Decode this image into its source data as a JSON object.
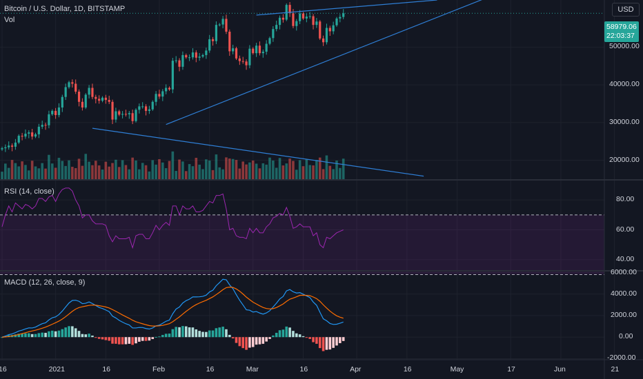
{
  "header": {
    "symbol_title": "Bitcoin / U.S. Dollar, 1D, BITSTAMP",
    "vol_label": "Vol",
    "currency_button": "USD"
  },
  "last_price": {
    "value": "58979.06",
    "countdown": "22:03:37"
  },
  "panes": {
    "rsi_title": "RSI (14, close)",
    "macd_title": "MACD (12, 26, close, 9)"
  },
  "colors": {
    "background": "#131722",
    "up": "#26a69a",
    "down": "#ef5350",
    "trendline": "#2962ff",
    "rsi": "#9c27b0",
    "macd_line": "#2196f3",
    "signal_line": "#ff6d00"
  },
  "chart_data": [
    {
      "type": "candlestick",
      "title": "Bitcoin / U.S. Dollar, 1D, BITSTAMP",
      "price_axis_ticks": [
        "20000.00",
        "30000.00",
        "40000.00",
        "50000.00"
      ],
      "ylim": [
        15000,
        62500
      ],
      "x_ticks": [
        "16",
        "2021",
        "16",
        "Feb",
        "16",
        "Mar",
        "16",
        "Apr",
        "16",
        "May",
        "17",
        "Jun",
        "21"
      ],
      "x_tick_days": [
        0,
        16,
        31,
        47,
        62,
        75,
        90,
        106,
        121,
        136,
        152,
        167,
        183
      ],
      "x_range_days": [
        0,
        200
      ],
      "close": [
        23200,
        23450,
        23900,
        23600,
        24700,
        26500,
        26300,
        27050,
        27400,
        26300,
        26900,
        28900,
        29400,
        29300,
        32200,
        33100,
        32000,
        34000,
        36800,
        39400,
        40700,
        40300,
        38200,
        35500,
        34000,
        37400,
        39200,
        36800,
        36300,
        35800,
        36600,
        36000,
        35500,
        30800,
        33000,
        32100,
        32300,
        32200,
        32500,
        30400,
        33400,
        34300,
        34300,
        33100,
        33500,
        35500,
        37600,
        36900,
        38300,
        39200,
        38800,
        46400,
        46500,
        44800,
        47900,
        47300,
        47300,
        48600,
        47200,
        47500,
        47900,
        49100,
        52100,
        51600,
        55900,
        56000,
        57500,
        54100,
        48900,
        49700,
        47000,
        46300,
        46200,
        45200,
        49600,
        48400,
        50400,
        48400,
        48800,
        50900,
        52400,
        54800,
        55900,
        57800,
        57300,
        61200,
        59000,
        55600,
        56900,
        58900,
        57600,
        58100,
        58200,
        55900,
        56800,
        52300,
        51300,
        55100,
        54200,
        55800,
        57600,
        58000,
        58979
      ],
      "volume_notes": "Volume histogram in upper pane, red/green per candle",
      "trendlines": [
        {
          "from": [
            49,
            29500
          ],
          "to": [
            146,
            63500
          ]
        },
        {
          "from": [
            76,
            58500
          ],
          "to": [
            130,
            62500
          ]
        },
        {
          "from": [
            27,
            28500
          ],
          "to": [
            126,
            15800
          ]
        }
      ]
    },
    {
      "type": "line",
      "title": "RSI (14, close)",
      "y_ticks": [
        "80.00",
        "60.00",
        "40.00"
      ],
      "ylim": [
        33,
        93
      ],
      "bands": [
        30,
        70
      ],
      "values": [
        62,
        70,
        76,
        72,
        78,
        76,
        74,
        77,
        76,
        74,
        76,
        81,
        81,
        79,
        82,
        83,
        79,
        84,
        87,
        88,
        88,
        86,
        80,
        76,
        68,
        70,
        70,
        66,
        64,
        64,
        64,
        63,
        56,
        52,
        56,
        54,
        54,
        54,
        55,
        48,
        56,
        57,
        57,
        54,
        54,
        58,
        63,
        60,
        63,
        65,
        63,
        76,
        76,
        70,
        76,
        74,
        74,
        76,
        72,
        72,
        73,
        76,
        79,
        78,
        83,
        83,
        84,
        74,
        60,
        61,
        56,
        55,
        55,
        54,
        61,
        58,
        61,
        58,
        58,
        62,
        64,
        68,
        69,
        71,
        70,
        75,
        69,
        61,
        62,
        64,
        62,
        62,
        62,
        56,
        58,
        50,
        48,
        55,
        54,
        56,
        58,
        59,
        60
      ]
    },
    {
      "type": "line+histogram",
      "title": "MACD (12, 26, close, 9)",
      "y_ticks": [
        "6000.00",
        "4000.00",
        "2000.00",
        "0.00",
        "-2000.00"
      ],
      "ylim": [
        -2100,
        6100
      ],
      "series": [
        {
          "name": "MACD",
          "values": [
            0,
            100,
            230,
            300,
            420,
            560,
            650,
            760,
            860,
            850,
            930,
            1100,
            1250,
            1330,
            1600,
            1800,
            1880,
            2100,
            2420,
            2800,
            3170,
            3410,
            3430,
            3330,
            3110,
            3150,
            3270,
            3120,
            2940,
            2760,
            2660,
            2520,
            2370,
            1950,
            1780,
            1560,
            1390,
            1240,
            1130,
            850,
            850,
            900,
            890,
            800,
            750,
            850,
            1050,
            1110,
            1290,
            1480,
            1580,
            2170,
            2610,
            2800,
            3170,
            3390,
            3530,
            3740,
            3740,
            3750,
            3790,
            3900,
            4200,
            4360,
            4780,
            5070,
            5380,
            5330,
            4860,
            4500,
            3940,
            3430,
            2990,
            2540,
            2500,
            2330,
            2380,
            2240,
            2140,
            2250,
            2450,
            2800,
            3150,
            3550,
            3780,
            4300,
            4420,
            4210,
            4100,
            4140,
            3990,
            3830,
            3680,
            3260,
            2960,
            2310,
            1700,
            1520,
            1270,
            1180,
            1200,
            1290,
            1400
          ]
        },
        {
          "name": "Signal",
          "values": [
            0,
            20,
            60,
            110,
            170,
            250,
            330,
            410,
            500,
            570,
            640,
            730,
            830,
            930,
            1060,
            1200,
            1340,
            1490,
            1680,
            1900,
            2150,
            2400,
            2610,
            2750,
            2820,
            2890,
            2950,
            2980,
            2970,
            2920,
            2870,
            2800,
            2710,
            2560,
            2400,
            2230,
            2060,
            1900,
            1750,
            1570,
            1430,
            1330,
            1240,
            1150,
            1070,
            1030,
            1030,
            1050,
            1090,
            1170,
            1250,
            1430,
            1660,
            1880,
            2140,
            2390,
            2620,
            2840,
            3020,
            3170,
            3300,
            3420,
            3580,
            3740,
            3950,
            4170,
            4410,
            4600,
            4650,
            4620,
            4480,
            4270,
            4010,
            3720,
            3480,
            3250,
            3080,
            2910,
            2760,
            2660,
            2620,
            2650,
            2750,
            2910,
            3080,
            3320,
            3530,
            3630,
            3750,
            3880,
            3900,
            3880,
            3850,
            3730,
            3580,
            3330,
            3000,
            2700,
            2420,
            2180,
            1980,
            1850,
            1760
          ]
        }
      ]
    }
  ]
}
